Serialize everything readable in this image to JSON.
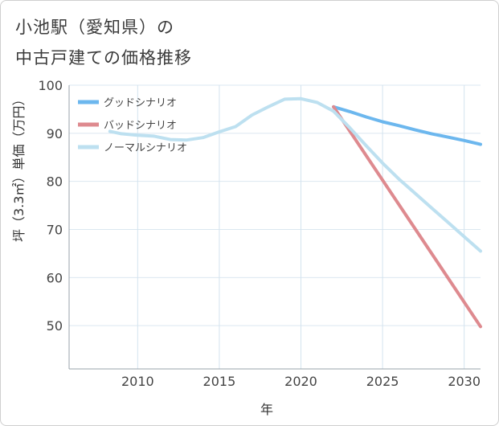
{
  "chart_data": {
    "type": "line",
    "title": [
      "小池駅（愛知県）の",
      "中古戸建ての価格推移"
    ],
    "xlabel": "年",
    "ylabel": "坪（3.3㎡）単価（万円）",
    "xlim": [
      2005.8,
      2031
    ],
    "ylim": [
      41,
      100
    ],
    "xticks": [
      2010,
      2015,
      2020,
      2025,
      2030
    ],
    "yticks": [
      50,
      60,
      70,
      80,
      90,
      100
    ],
    "grid": true,
    "legend_position": "top-left",
    "series": [
      {
        "name": "グッドシナリオ",
        "color": "#6cb7ee",
        "x": [
          2022,
          2023,
          2024,
          2025,
          2026,
          2027,
          2028,
          2029,
          2030,
          2031
        ],
        "y": [
          95.5,
          94.5,
          93.4,
          92.4,
          91.6,
          90.7,
          89.9,
          89.2,
          88.5,
          87.7
        ]
      },
      {
        "name": "バッドシナリオ",
        "color": "#de8a8f",
        "x": [
          2022,
          2031
        ],
        "y": [
          95.5,
          49.8
        ]
      },
      {
        "name": "ノーマルシナリオ",
        "color": "#bde0f0",
        "x": [
          2008.3,
          2009,
          2010,
          2011,
          2012,
          2013,
          2014,
          2015,
          2016,
          2017,
          2018,
          2019,
          2020,
          2021,
          2022,
          2023,
          2024,
          2025,
          2026,
          2027,
          2028,
          2029,
          2030,
          2031
        ],
        "y": [
          90.4,
          89.9,
          89.6,
          89.4,
          88.7,
          88.6,
          89.1,
          90.3,
          91.4,
          93.8,
          95.5,
          97.1,
          97.2,
          96.4,
          94.6,
          91.1,
          87.4,
          83.8,
          80.5,
          77.5,
          74.5,
          71.5,
          68.5,
          65.5
        ]
      }
    ]
  }
}
